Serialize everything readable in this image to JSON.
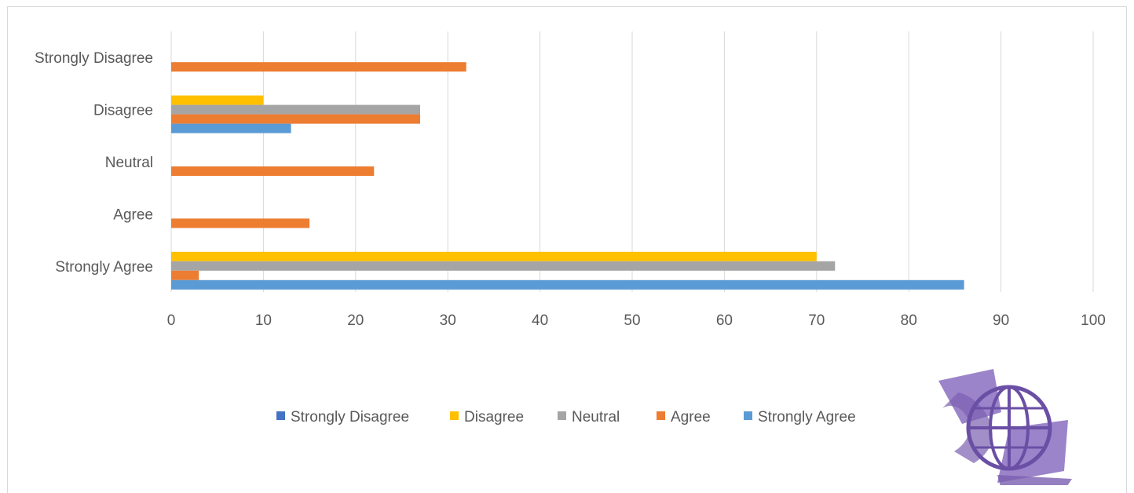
{
  "chart_data": {
    "type": "bar",
    "orientation": "horizontal",
    "categories": [
      "Strongly Agree",
      "Agree",
      "Neutral",
      "Disagree",
      "Strongly Disagree"
    ],
    "series": [
      {
        "name": "Strongly Disagree",
        "color": "#4472C4",
        "values": [
          0,
          0,
          0,
          0,
          0
        ]
      },
      {
        "name": "Disagree",
        "color": "#FFC000",
        "values": [
          70,
          0,
          0,
          10,
          0
        ]
      },
      {
        "name": "Neutral",
        "color": "#A5A5A5",
        "values": [
          72,
          0,
          0,
          27,
          0
        ]
      },
      {
        "name": "Agree",
        "color": "#ED7D31",
        "values": [
          3,
          15,
          22,
          27,
          32
        ]
      },
      {
        "name": "Strongly Agree",
        "color": "#5B9BD5",
        "values": [
          86,
          0,
          0,
          13,
          0
        ]
      }
    ],
    "legend_order": [
      "Strongly Disagree",
      "Disagree",
      "Neutral",
      "Agree",
      "Strongly Agree"
    ],
    "xlim": [
      0,
      100
    ],
    "xticks": [
      0,
      10,
      20,
      30,
      40,
      50,
      60,
      70,
      80,
      90,
      100
    ],
    "grid": "vertical",
    "legend_position": "bottom",
    "title": "",
    "xlabel": "",
    "ylabel": ""
  },
  "logo": {
    "name": "globe-logo",
    "color": "#7a5fb0"
  }
}
